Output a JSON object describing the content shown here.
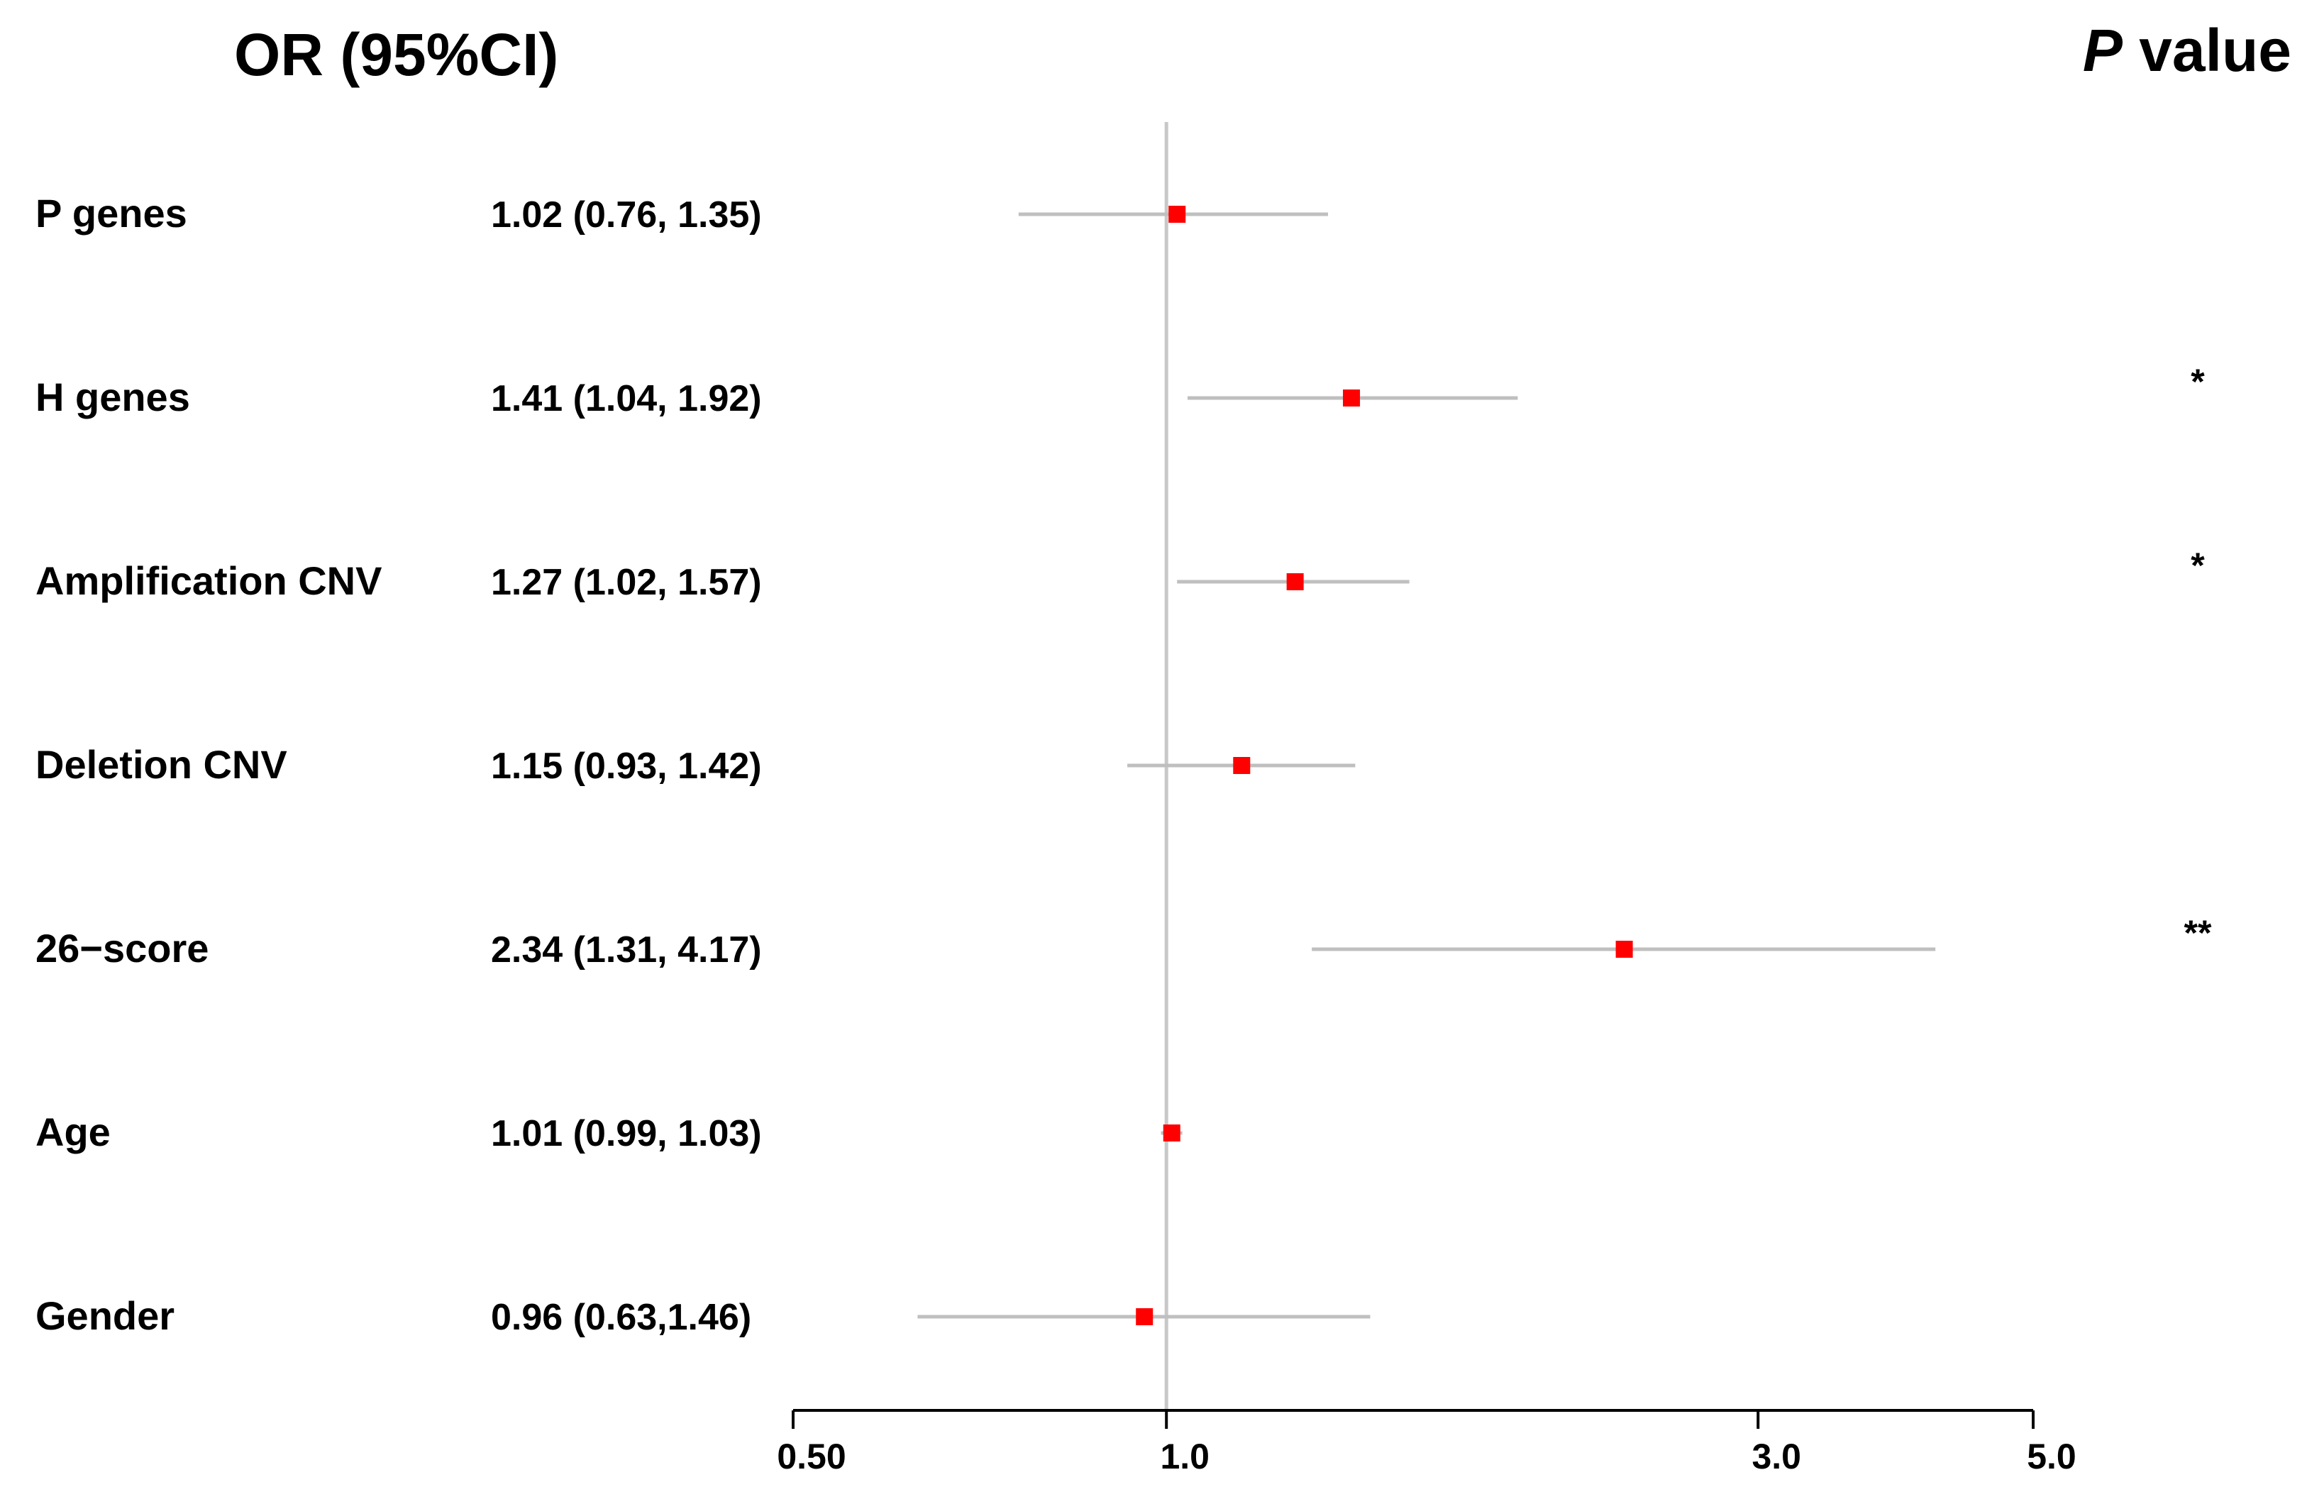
{
  "headers": {
    "or_ci": "OR (95%CI)",
    "p_value_italic": "P",
    "p_value_rest": " value"
  },
  "chart_data": {
    "type": "forest",
    "x_scale": "log",
    "xlim": [
      0.5,
      5.0
    ],
    "reference_line": 1.0,
    "x_ticks": [
      {
        "value": 0.5,
        "label": "0.50"
      },
      {
        "value": 1.0,
        "label": "1.0"
      },
      {
        "value": 3.0,
        "label": "3.0"
      },
      {
        "value": 5.0,
        "label": "5.0"
      }
    ],
    "colors": {
      "point": "#ff0000",
      "ci_line": "#bfbfbf",
      "ref_line": "#c8c8c8",
      "axis": "#000000"
    },
    "rows": [
      {
        "label": "P genes",
        "ci_text": "1.02 (0.76, 1.35)",
        "or": 1.02,
        "lo": 0.76,
        "hi": 1.35,
        "sig": ""
      },
      {
        "label": "H genes",
        "ci_text": "1.41 (1.04, 1.92)",
        "or": 1.41,
        "lo": 1.04,
        "hi": 1.92,
        "sig": "*"
      },
      {
        "label": "Amplification CNV",
        "ci_text": "1.27 (1.02, 1.57)",
        "or": 1.27,
        "lo": 1.02,
        "hi": 1.57,
        "sig": "*"
      },
      {
        "label": "Deletion CNV",
        "ci_text": "1.15 (0.93, 1.42)",
        "or": 1.15,
        "lo": 0.93,
        "hi": 1.42,
        "sig": ""
      },
      {
        "label": "26−score",
        "ci_text": "2.34 (1.31, 4.17)",
        "or": 2.34,
        "lo": 1.31,
        "hi": 4.17,
        "sig": "**"
      },
      {
        "label": "Age",
        "ci_text": "1.01 (0.99, 1.03)",
        "or": 1.01,
        "lo": 0.99,
        "hi": 1.03,
        "sig": ""
      },
      {
        "label": "Gender",
        "ci_text": "0.96 (0.63,1.46)",
        "or": 0.96,
        "lo": 0.63,
        "hi": 1.46,
        "sig": ""
      }
    ]
  }
}
